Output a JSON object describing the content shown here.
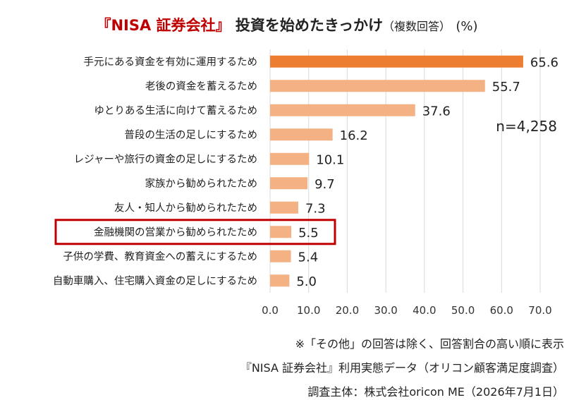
{
  "title": {
    "brand": "『NISA 証券会社』",
    "main": "投資を始めたきっかけ",
    "sub": "（複数回答）",
    "unit": "(%)"
  },
  "sample_size": "n=4,258",
  "highlight_category": "金融機関の営業から勧められたため",
  "colors": {
    "top_bar": "#ed7d31",
    "bar": "#f4b183",
    "highlight_box": "#c00000",
    "grid": "#d9d9d9"
  },
  "notes": [
    "※「その他」の回答は除く、回答割合の高い順に表示",
    "『NISA 証券会社』利用実態データ（オリコン顧客満足度調査）",
    "調査主体：株式会社oricon ME（2026年7月1日）"
  ],
  "chart_data": {
    "type": "bar",
    "orientation": "horizontal",
    "categories": [
      "手元にある資金を有効に運用するため",
      "老後の資金を蓄えるため",
      "ゆとりある生活に向けて蓄えるため",
      "普段の生活の足しにするため",
      "レジャーや旅行の資金の足しにするため",
      "家族から勧められたため",
      "友人・知人から勧められたため",
      "金融機関の営業から勧められたため",
      "子供の学費、教育資金への蓄えにするため",
      "自動車購入、住宅購入資金の足しにするため"
    ],
    "values": [
      65.6,
      55.7,
      37.6,
      16.2,
      10.1,
      9.7,
      7.3,
      5.5,
      5.4,
      5.0
    ],
    "xlim": [
      0,
      70
    ],
    "ticks": [
      "0.0",
      "10.0",
      "20.0",
      "30.0",
      "40.0",
      "50.0",
      "60.0",
      "70.0"
    ],
    "grid": true
  }
}
